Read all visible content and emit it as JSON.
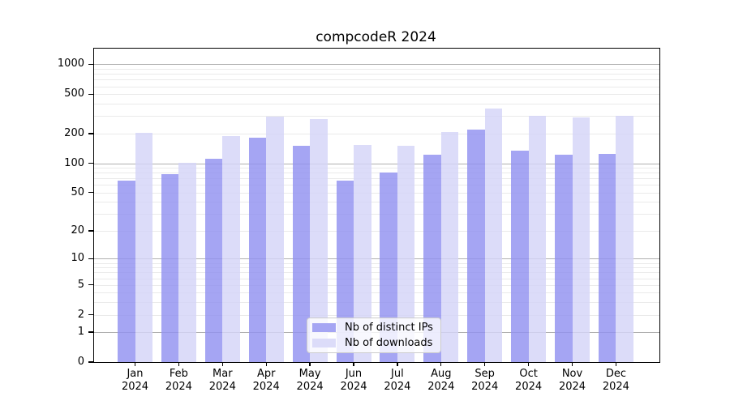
{
  "chart_data": {
    "type": "bar",
    "title": "compcodeR 2024",
    "categories": [
      "Jan",
      "Feb",
      "Mar",
      "Apr",
      "May",
      "Jun",
      "Jul",
      "Aug",
      "Sep",
      "Oct",
      "Nov",
      "Dec"
    ],
    "x_sub_label": "2024",
    "series": [
      {
        "name": "Nb of distinct IPs",
        "values": [
          66,
          78,
          112,
          183,
          150,
          67,
          80,
          121,
          220,
          134,
          123,
          124
        ],
        "color": "#a5a5f3",
        "fill": "rgba(145,145,240,0.82)"
      },
      {
        "name": "Nb of downloads",
        "values": [
          203,
          101,
          188,
          295,
          283,
          152,
          150,
          208,
          360,
          302,
          289,
          300
        ],
        "color": "#dcdcf9",
        "fill": "rgba(212,212,248,0.82)"
      }
    ],
    "y_ticks": [
      1000,
      500,
      200,
      100,
      50,
      20,
      10,
      5,
      2,
      1,
      0
    ],
    "y_tick_labels": [
      "1000",
      "500",
      "200",
      "100",
      "50",
      "20",
      "10",
      "5",
      "2",
      "1",
      "0"
    ],
    "y_scale": "log10(x+1)",
    "ylim": [
      0,
      1440
    ],
    "grid": {
      "enabled": true,
      "major_lines": [
        1,
        10,
        100,
        1000
      ],
      "major_color": "#b0b0b0",
      "minor_color": "#eaeaea"
    },
    "legend_position": "bottom-center",
    "axis_color": "#000000",
    "background_color": "#ffffff"
  }
}
